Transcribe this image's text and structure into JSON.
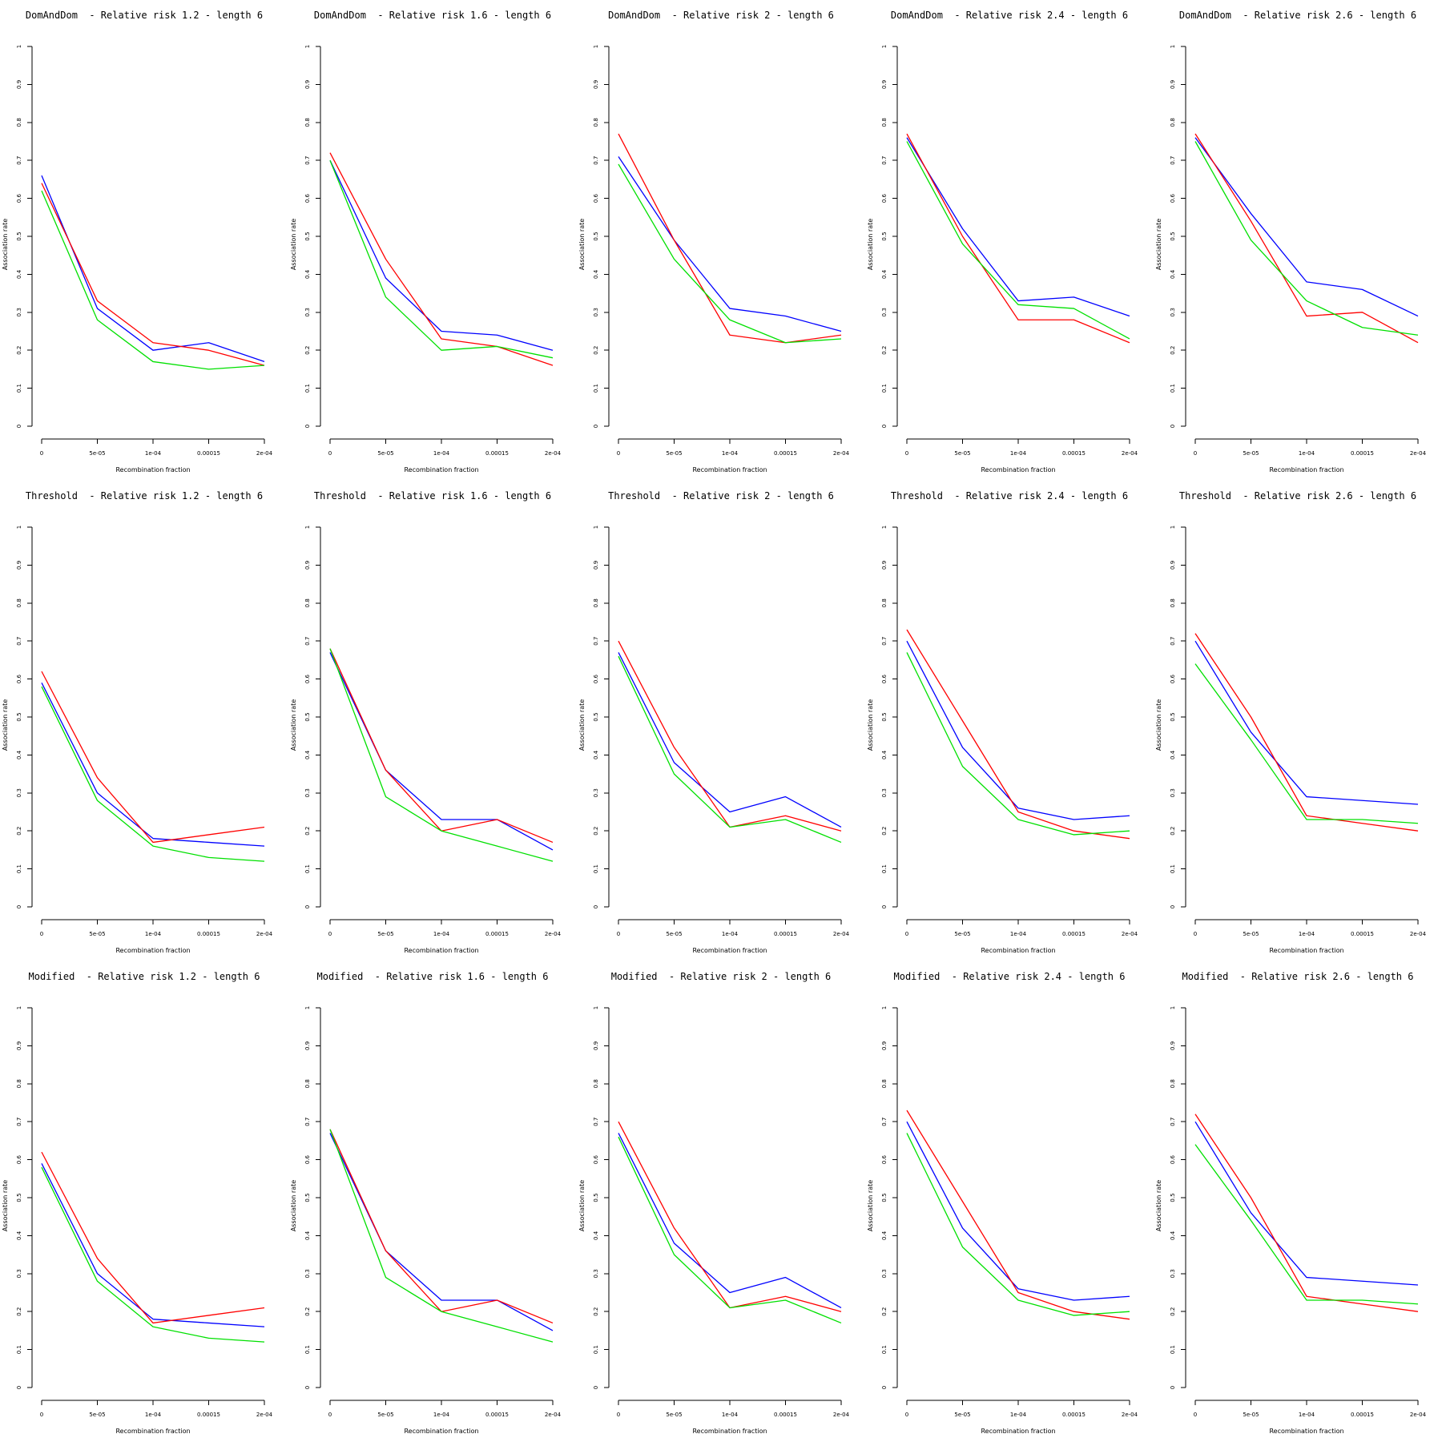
{
  "colors": {
    "blue": "#0000ff",
    "red": "#ff0000",
    "green": "#00e000"
  },
  "chart_data": [
    {
      "type": "line",
      "title": "DomAndDom  - Relative risk 1.2 - length 6",
      "xlabel": "Recombination fraction",
      "ylabel": "Association rate",
      "categories": [
        "0",
        "5e-05",
        "1e-04",
        "0.00015",
        "2e-04"
      ],
      "x": [
        0,
        5e-05,
        0.0001,
        0.00015,
        0.0002
      ],
      "ylim": [
        0,
        1
      ],
      "yticks": [
        "0",
        "0.1",
        "0.2",
        "0.3",
        "0.4",
        "0.5",
        "0.6",
        "0.7",
        "0.8",
        "0.9",
        "1"
      ],
      "series": [
        {
          "color": "blue",
          "values": [
            0.66,
            0.31,
            0.2,
            0.22,
            0.17
          ]
        },
        {
          "color": "red",
          "values": [
            0.64,
            0.33,
            0.22,
            0.2,
            0.16
          ]
        },
        {
          "color": "green",
          "values": [
            0.62,
            0.28,
            0.17,
            0.15,
            0.16
          ]
        }
      ]
    },
    {
      "type": "line",
      "title": "DomAndDom  - Relative risk 1.6 - length 6",
      "xlabel": "Recombination fraction",
      "ylabel": "Association rate",
      "categories": [
        "0",
        "5e-05",
        "1e-04",
        "0.00015",
        "2e-04"
      ],
      "x": [
        0,
        5e-05,
        0.0001,
        0.00015,
        0.0002
      ],
      "ylim": [
        0,
        1
      ],
      "yticks": [
        "0",
        "0.1",
        "0.2",
        "0.3",
        "0.4",
        "0.5",
        "0.6",
        "0.7",
        "0.8",
        "0.9",
        "1"
      ],
      "series": [
        {
          "color": "blue",
          "values": [
            0.7,
            0.39,
            0.25,
            0.24,
            0.2
          ]
        },
        {
          "color": "red",
          "values": [
            0.72,
            0.44,
            0.23,
            0.21,
            0.16
          ]
        },
        {
          "color": "green",
          "values": [
            0.7,
            0.34,
            0.2,
            0.21,
            0.18
          ]
        }
      ]
    },
    {
      "type": "line",
      "title": "DomAndDom  - Relative risk 2 - length 6",
      "xlabel": "Recombination fraction",
      "ylabel": "Association rate",
      "categories": [
        "0",
        "5e-05",
        "1e-04",
        "0.00015",
        "2e-04"
      ],
      "x": [
        0,
        5e-05,
        0.0001,
        0.00015,
        0.0002
      ],
      "ylim": [
        0,
        1
      ],
      "yticks": [
        "0",
        "0.1",
        "0.2",
        "0.3",
        "0.4",
        "0.5",
        "0.6",
        "0.7",
        "0.8",
        "0.9",
        "1"
      ],
      "series": [
        {
          "color": "blue",
          "values": [
            0.71,
            0.49,
            0.31,
            0.29,
            0.25
          ]
        },
        {
          "color": "red",
          "values": [
            0.77,
            0.49,
            0.24,
            0.22,
            0.24
          ]
        },
        {
          "color": "green",
          "values": [
            0.69,
            0.44,
            0.28,
            0.22,
            0.23
          ]
        }
      ]
    },
    {
      "type": "line",
      "title": "DomAndDom  - Relative risk 2.4 - length 6",
      "xlabel": "Recombination fraction",
      "ylabel": "Association rate",
      "categories": [
        "0",
        "5e-05",
        "1e-04",
        "0.00015",
        "2e-04"
      ],
      "x": [
        0,
        5e-05,
        0.0001,
        0.00015,
        0.0002
      ],
      "ylim": [
        0,
        1
      ],
      "yticks": [
        "0",
        "0.1",
        "0.2",
        "0.3",
        "0.4",
        "0.5",
        "0.6",
        "0.7",
        "0.8",
        "0.9",
        "1"
      ],
      "series": [
        {
          "color": "blue",
          "values": [
            0.76,
            0.52,
            0.33,
            0.34,
            0.29
          ]
        },
        {
          "color": "red",
          "values": [
            0.77,
            0.5,
            0.28,
            0.28,
            0.22
          ]
        },
        {
          "color": "green",
          "values": [
            0.75,
            0.48,
            0.32,
            0.31,
            0.23
          ]
        }
      ]
    },
    {
      "type": "line",
      "title": "DomAndDom  - Relative risk 2.6 - length 6",
      "xlabel": "Recombination fraction",
      "ylabel": "Association rate",
      "categories": [
        "0",
        "5e-05",
        "1e-04",
        "0.00015",
        "2e-04"
      ],
      "x": [
        0,
        5e-05,
        0.0001,
        0.00015,
        0.0002
      ],
      "ylim": [
        0,
        1
      ],
      "yticks": [
        "0",
        "0.1",
        "0.2",
        "0.3",
        "0.4",
        "0.5",
        "0.6",
        "0.7",
        "0.8",
        "0.9",
        "1"
      ],
      "series": [
        {
          "color": "blue",
          "values": [
            0.76,
            0.56,
            0.38,
            0.36,
            0.29
          ]
        },
        {
          "color": "red",
          "values": [
            0.77,
            0.54,
            0.29,
            0.3,
            0.22
          ]
        },
        {
          "color": "green",
          "values": [
            0.75,
            0.49,
            0.33,
            0.26,
            0.24
          ]
        }
      ]
    },
    {
      "type": "line",
      "title": "Threshold  - Relative risk 1.2 - length 6",
      "xlabel": "Recombination fraction",
      "ylabel": "Association rate",
      "categories": [
        "0",
        "5e-05",
        "1e-04",
        "0.00015",
        "2e-04"
      ],
      "x": [
        0,
        5e-05,
        0.0001,
        0.00015,
        0.0002
      ],
      "ylim": [
        0,
        1
      ],
      "yticks": [
        "0",
        "0.1",
        "0.2",
        "0.3",
        "0.4",
        "0.5",
        "0.6",
        "0.7",
        "0.8",
        "0.9",
        "1"
      ],
      "series": [
        {
          "color": "blue",
          "values": [
            0.59,
            0.3,
            0.18,
            0.17,
            0.16
          ]
        },
        {
          "color": "red",
          "values": [
            0.62,
            0.34,
            0.17,
            0.19,
            0.21
          ]
        },
        {
          "color": "green",
          "values": [
            0.58,
            0.28,
            0.16,
            0.13,
            0.12
          ]
        }
      ]
    },
    {
      "type": "line",
      "title": "Threshold  - Relative risk 1.6 - length 6",
      "xlabel": "Recombination fraction",
      "ylabel": "Association rate",
      "categories": [
        "0",
        "5e-05",
        "1e-04",
        "0.00015",
        "2e-04"
      ],
      "x": [
        0,
        5e-05,
        0.0001,
        0.00015,
        0.0002
      ],
      "ylim": [
        0,
        1
      ],
      "yticks": [
        "0",
        "0.1",
        "0.2",
        "0.3",
        "0.4",
        "0.5",
        "0.6",
        "0.7",
        "0.8",
        "0.9",
        "1"
      ],
      "series": [
        {
          "color": "blue",
          "values": [
            0.67,
            0.36,
            0.23,
            0.23,
            0.15
          ]
        },
        {
          "color": "red",
          "values": [
            0.68,
            0.36,
            0.2,
            0.23,
            0.17
          ]
        },
        {
          "color": "green",
          "values": [
            0.68,
            0.29,
            0.2,
            0.16,
            0.12
          ]
        }
      ]
    },
    {
      "type": "line",
      "title": "Threshold  - Relative risk 2 - length 6",
      "xlabel": "Recombination fraction",
      "ylabel": "Association rate",
      "categories": [
        "0",
        "5e-05",
        "1e-04",
        "0.00015",
        "2e-04"
      ],
      "x": [
        0,
        5e-05,
        0.0001,
        0.00015,
        0.0002
      ],
      "ylim": [
        0,
        1
      ],
      "yticks": [
        "0",
        "0.1",
        "0.2",
        "0.3",
        "0.4",
        "0.5",
        "0.6",
        "0.7",
        "0.8",
        "0.9",
        "1"
      ],
      "series": [
        {
          "color": "blue",
          "values": [
            0.67,
            0.38,
            0.25,
            0.29,
            0.21
          ]
        },
        {
          "color": "red",
          "values": [
            0.7,
            0.42,
            0.21,
            0.24,
            0.2
          ]
        },
        {
          "color": "green",
          "values": [
            0.66,
            0.35,
            0.21,
            0.23,
            0.17
          ]
        }
      ]
    },
    {
      "type": "line",
      "title": "Threshold  - Relative risk 2.4 - length 6",
      "xlabel": "Recombination fraction",
      "ylabel": "Association rate",
      "categories": [
        "0",
        "5e-05",
        "1e-04",
        "0.00015",
        "2e-04"
      ],
      "x": [
        0,
        5e-05,
        0.0001,
        0.00015,
        0.0002
      ],
      "ylim": [
        0,
        1
      ],
      "yticks": [
        "0",
        "0.1",
        "0.2",
        "0.3",
        "0.4",
        "0.5",
        "0.6",
        "0.7",
        "0.8",
        "0.9",
        "1"
      ],
      "series": [
        {
          "color": "blue",
          "values": [
            0.7,
            0.42,
            0.26,
            0.23,
            0.24
          ]
        },
        {
          "color": "red",
          "values": [
            0.73,
            0.49,
            0.25,
            0.2,
            0.18
          ]
        },
        {
          "color": "green",
          "values": [
            0.67,
            0.37,
            0.23,
            0.19,
            0.2
          ]
        }
      ]
    },
    {
      "type": "line",
      "title": "Threshold  - Relative risk 2.6 - length 6",
      "xlabel": "Recombination fraction",
      "ylabel": "Association rate",
      "categories": [
        "0",
        "5e-05",
        "1e-04",
        "0.00015",
        "2e-04"
      ],
      "x": [
        0,
        5e-05,
        0.0001,
        0.00015,
        0.0002
      ],
      "ylim": [
        0,
        1
      ],
      "yticks": [
        "0",
        "0.1",
        "0.2",
        "0.3",
        "0.4",
        "0.5",
        "0.6",
        "0.7",
        "0.8",
        "0.9",
        "1"
      ],
      "series": [
        {
          "color": "blue",
          "values": [
            0.7,
            0.46,
            0.29,
            0.28,
            0.27
          ]
        },
        {
          "color": "red",
          "values": [
            0.72,
            0.5,
            0.24,
            0.22,
            0.2
          ]
        },
        {
          "color": "green",
          "values": [
            0.64,
            0.44,
            0.23,
            0.23,
            0.22
          ]
        }
      ]
    },
    {
      "type": "line",
      "title": "Modified  - Relative risk 1.2 - length 6",
      "xlabel": "Recombination fraction",
      "ylabel": "Association rate",
      "categories": [
        "0",
        "5e-05",
        "1e-04",
        "0.00015",
        "2e-04"
      ],
      "x": [
        0,
        5e-05,
        0.0001,
        0.00015,
        0.0002
      ],
      "ylim": [
        0,
        1
      ],
      "yticks": [
        "0",
        "0.1",
        "0.2",
        "0.3",
        "0.4",
        "0.5",
        "0.6",
        "0.7",
        "0.8",
        "0.9",
        "1"
      ],
      "series": [
        {
          "color": "blue",
          "values": [
            0.59,
            0.3,
            0.18,
            0.17,
            0.16
          ]
        },
        {
          "color": "red",
          "values": [
            0.62,
            0.34,
            0.17,
            0.19,
            0.21
          ]
        },
        {
          "color": "green",
          "values": [
            0.58,
            0.28,
            0.16,
            0.13,
            0.12
          ]
        }
      ]
    },
    {
      "type": "line",
      "title": "Modified  - Relative risk 1.6 - length 6",
      "xlabel": "Recombination fraction",
      "ylabel": "Association rate",
      "categories": [
        "0",
        "5e-05",
        "1e-04",
        "0.00015",
        "2e-04"
      ],
      "x": [
        0,
        5e-05,
        0.0001,
        0.00015,
        0.0002
      ],
      "ylim": [
        0,
        1
      ],
      "yticks": [
        "0",
        "0.1",
        "0.2",
        "0.3",
        "0.4",
        "0.5",
        "0.6",
        "0.7",
        "0.8",
        "0.9",
        "1"
      ],
      "series": [
        {
          "color": "blue",
          "values": [
            0.67,
            0.36,
            0.23,
            0.23,
            0.15
          ]
        },
        {
          "color": "red",
          "values": [
            0.68,
            0.36,
            0.2,
            0.23,
            0.17
          ]
        },
        {
          "color": "green",
          "values": [
            0.68,
            0.29,
            0.2,
            0.16,
            0.12
          ]
        }
      ]
    },
    {
      "type": "line",
      "title": "Modified  - Relative risk 2 - length 6",
      "xlabel": "Recombination fraction",
      "ylabel": "Association rate",
      "categories": [
        "0",
        "5e-05",
        "1e-04",
        "0.00015",
        "2e-04"
      ],
      "x": [
        0,
        5e-05,
        0.0001,
        0.00015,
        0.0002
      ],
      "ylim": [
        0,
        1
      ],
      "yticks": [
        "0",
        "0.1",
        "0.2",
        "0.3",
        "0.4",
        "0.5",
        "0.6",
        "0.7",
        "0.8",
        "0.9",
        "1"
      ],
      "series": [
        {
          "color": "blue",
          "values": [
            0.67,
            0.38,
            0.25,
            0.29,
            0.21
          ]
        },
        {
          "color": "red",
          "values": [
            0.7,
            0.42,
            0.21,
            0.24,
            0.2
          ]
        },
        {
          "color": "green",
          "values": [
            0.66,
            0.35,
            0.21,
            0.23,
            0.17
          ]
        }
      ]
    },
    {
      "type": "line",
      "title": "Modified  - Relative risk 2.4 - length 6",
      "xlabel": "Recombination fraction",
      "ylabel": "Association rate",
      "categories": [
        "0",
        "5e-05",
        "1e-04",
        "0.00015",
        "2e-04"
      ],
      "x": [
        0,
        5e-05,
        0.0001,
        0.00015,
        0.0002
      ],
      "ylim": [
        0,
        1
      ],
      "yticks": [
        "0",
        "0.1",
        "0.2",
        "0.3",
        "0.4",
        "0.5",
        "0.6",
        "0.7",
        "0.8",
        "0.9",
        "1"
      ],
      "series": [
        {
          "color": "blue",
          "values": [
            0.7,
            0.42,
            0.26,
            0.23,
            0.24
          ]
        },
        {
          "color": "red",
          "values": [
            0.73,
            0.49,
            0.25,
            0.2,
            0.18
          ]
        },
        {
          "color": "green",
          "values": [
            0.67,
            0.37,
            0.23,
            0.19,
            0.2
          ]
        }
      ]
    },
    {
      "type": "line",
      "title": "Modified  - Relative risk 2.6 - length 6",
      "xlabel": "Recombination fraction",
      "ylabel": "Association rate",
      "categories": [
        "0",
        "5e-05",
        "1e-04",
        "0.00015",
        "2e-04"
      ],
      "x": [
        0,
        5e-05,
        0.0001,
        0.00015,
        0.0002
      ],
      "ylim": [
        0,
        1
      ],
      "yticks": [
        "0",
        "0.1",
        "0.2",
        "0.3",
        "0.4",
        "0.5",
        "0.6",
        "0.7",
        "0.8",
        "0.9",
        "1"
      ],
      "series": [
        {
          "color": "blue",
          "values": [
            0.7,
            0.46,
            0.29,
            0.28,
            0.27
          ]
        },
        {
          "color": "red",
          "values": [
            0.72,
            0.5,
            0.24,
            0.22,
            0.2
          ]
        },
        {
          "color": "green",
          "values": [
            0.64,
            0.44,
            0.23,
            0.23,
            0.22
          ]
        }
      ]
    }
  ]
}
